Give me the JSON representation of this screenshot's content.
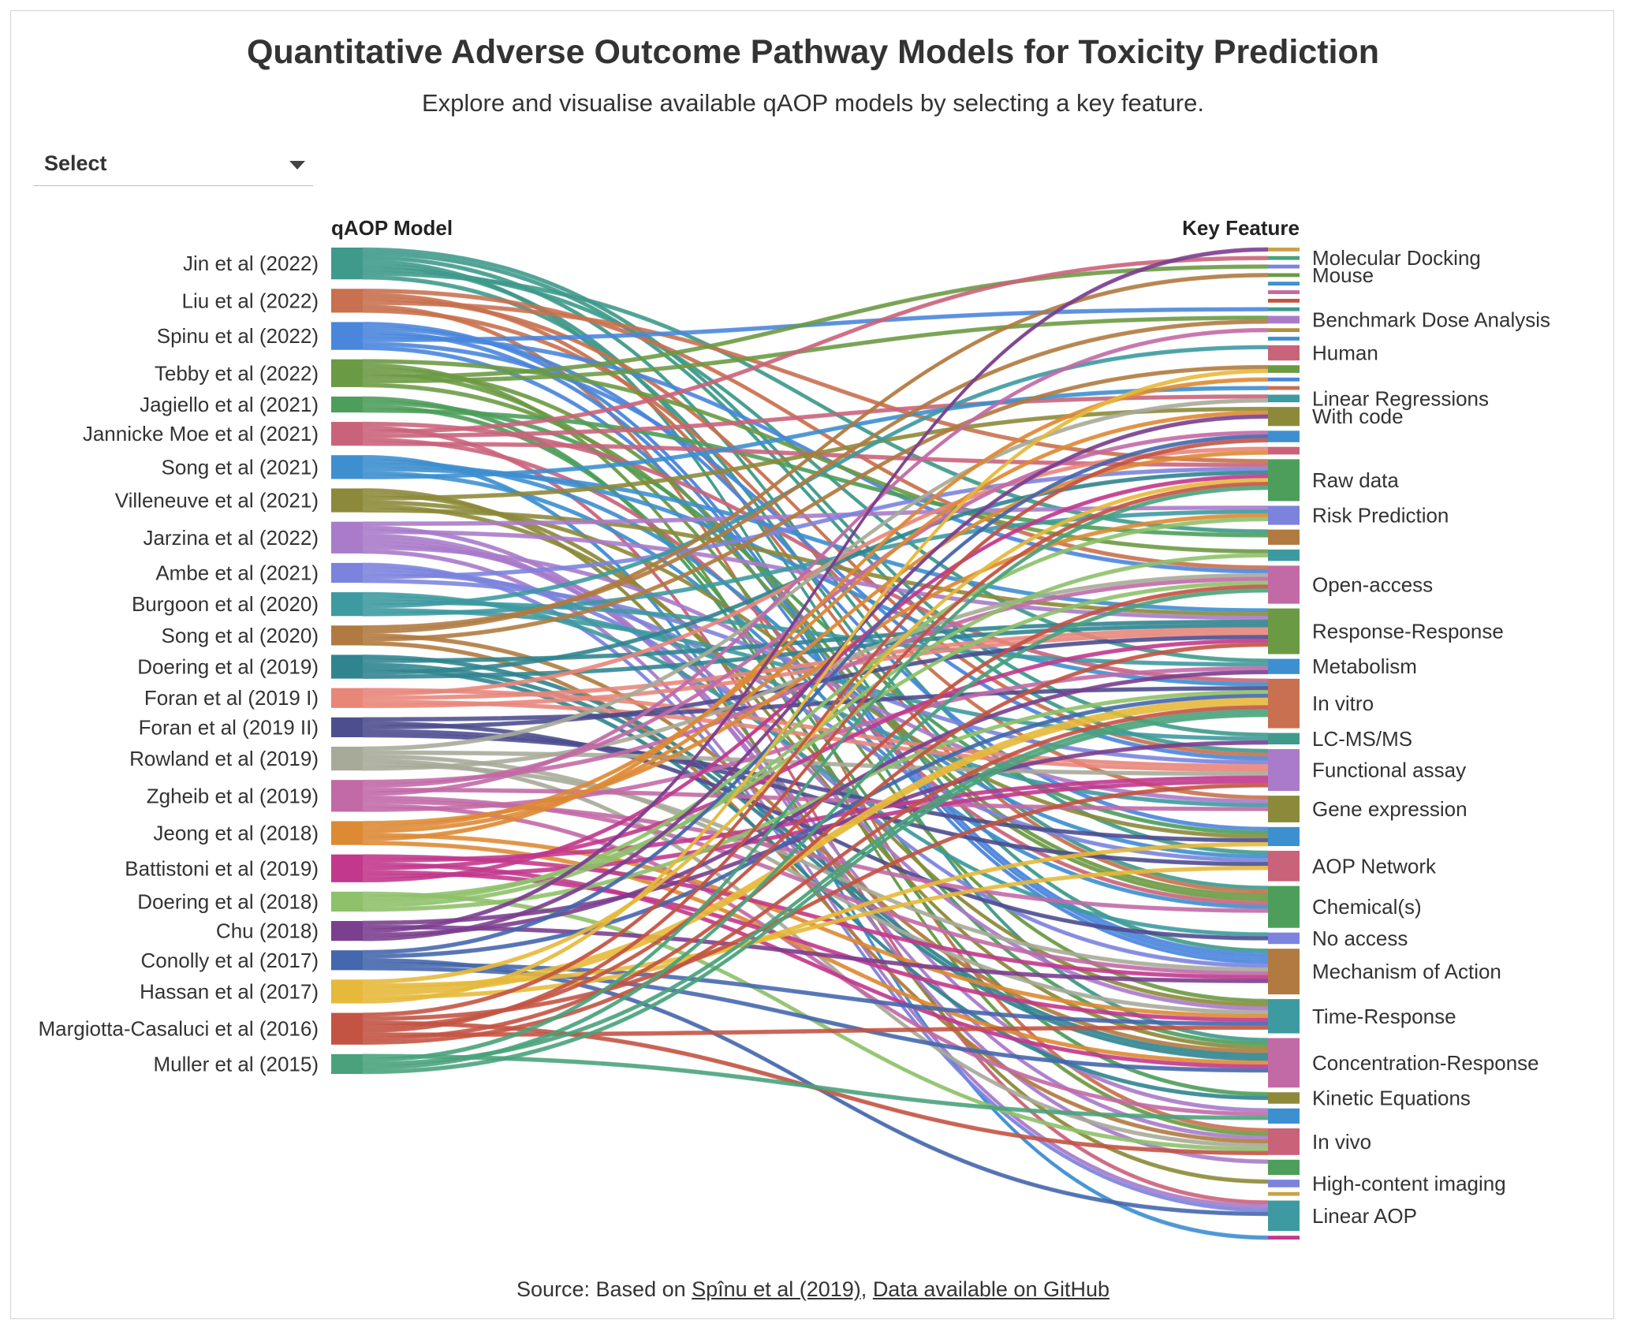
{
  "header": {
    "title": "Quantitative Adverse Outcome Pathway Models for Toxicity Prediction",
    "subtitle": "Explore and visualise available qAOP models by selecting a key feature."
  },
  "select": {
    "label": "Select",
    "icon": "caret-down-icon"
  },
  "chart_data": {
    "type": "sankey",
    "left_header": "qAOP Model",
    "right_header": "Key Feature",
    "models": [
      {
        "label": "Jin et al (2022)",
        "color": "#3f9a8b",
        "weight": 8
      },
      {
        "label": "Liu et al (2022)",
        "color": "#c8704f",
        "weight": 6
      },
      {
        "label": "Spinu et al (2022)",
        "color": "#4a86dc",
        "weight": 7
      },
      {
        "label": "Tebby et al (2022)",
        "color": "#6b9a44",
        "weight": 7
      },
      {
        "label": "Jagiello et al (2021)",
        "color": "#4c9e5a",
        "weight": 4
      },
      {
        "label": "Jannicke Moe et al (2021)",
        "color": "#c9637a",
        "weight": 6
      },
      {
        "label": "Song et al (2021)",
        "color": "#3d8fd0",
        "weight": 6
      },
      {
        "label": "Villeneuve et al (2021)",
        "color": "#8c8a3a",
        "weight": 6
      },
      {
        "label": "Jarzina et al (2022)",
        "color": "#a97bc9",
        "weight": 8
      },
      {
        "label": "Ambe et al (2021)",
        "color": "#7c83dd",
        "weight": 5
      },
      {
        "label": "Burgoon et al (2020)",
        "color": "#3d9aa0",
        "weight": 6
      },
      {
        "label": "Song et al (2020)",
        "color": "#b07a40",
        "weight": 5
      },
      {
        "label": "Doering et al (2019)",
        "color": "#2f8490",
        "weight": 6
      },
      {
        "label": "Foran et al (2019 I)",
        "color": "#e8867a",
        "weight": 5
      },
      {
        "label": "Foran et al (2019 II)",
        "color": "#4c4e8e",
        "weight": 5
      },
      {
        "label": "Rowland et al (2019)",
        "color": "#a7aa98",
        "weight": 6
      },
      {
        "label": "Zgheib et al (2019)",
        "color": "#c26aa6",
        "weight": 8
      },
      {
        "label": "Jeong et al (2018)",
        "color": "#dd8a34",
        "weight": 6
      },
      {
        "label": "Battistoni et al (2019)",
        "color": "#c2388c",
        "weight": 7
      },
      {
        "label": "Doering et al (2018)",
        "color": "#8fc06a",
        "weight": 5
      },
      {
        "label": "Chu (2018)",
        "color": "#7a3f8e",
        "weight": 5
      },
      {
        "label": "Conolly et al (2017)",
        "color": "#4567ad",
        "weight": 5
      },
      {
        "label": "Hassan et al (2017)",
        "color": "#e6b93b",
        "weight": 6
      },
      {
        "label": "Margiotta-Casaluci et al (2016)",
        "color": "#c35443",
        "weight": 8
      },
      {
        "label": "Muller et al (2015)",
        "color": "#4aa27c",
        "weight": 5
      }
    ],
    "features": [
      {
        "label": "",
        "color": "#c9a24a",
        "weight": 1
      },
      {
        "label": "Molecular Docking",
        "color": "#4aa27c",
        "weight": 1
      },
      {
        "label": "",
        "color": "#7c83dd",
        "weight": 1
      },
      {
        "label": "Mouse",
        "color": "#6b9a44",
        "weight": 1
      },
      {
        "label": "",
        "color": "#3d8fd0",
        "weight": 1
      },
      {
        "label": "",
        "color": "#c26aa6",
        "weight": 1
      },
      {
        "label": "",
        "color": "#c35443",
        "weight": 1
      },
      {
        "label": "",
        "color": "#3f9a8b",
        "weight": 1
      },
      {
        "label": "Benchmark Dose Analysis",
        "color": "#a97bc9",
        "weight": 2
      },
      {
        "label": "",
        "color": "#b0903a",
        "weight": 1
      },
      {
        "label": "",
        "color": "#3d8fd0",
        "weight": 1
      },
      {
        "label": "Human",
        "color": "#c9637a",
        "weight": 4
      },
      {
        "label": "",
        "color": "#6b9a44",
        "weight": 2
      },
      {
        "label": "",
        "color": "#4a86dc",
        "weight": 1
      },
      {
        "label": "",
        "color": "#c8704f",
        "weight": 1
      },
      {
        "label": "Linear Regressions",
        "color": "#3d9aa0",
        "weight": 2
      },
      {
        "label": "With code",
        "color": "#8c8a3a",
        "weight": 5
      },
      {
        "label": "",
        "color": "#3d8fd0",
        "weight": 3
      },
      {
        "label": "",
        "color": "#c9637a",
        "weight": 2
      },
      {
        "label": "Raw data",
        "color": "#4c9e5a",
        "weight": 11
      },
      {
        "label": "Risk Prediction",
        "color": "#7c83dd",
        "weight": 5
      },
      {
        "label": "",
        "color": "#b07a40",
        "weight": 4
      },
      {
        "label": "",
        "color": "#3d9aa0",
        "weight": 3
      },
      {
        "label": "Open-access",
        "color": "#c26aa6",
        "weight": 10
      },
      {
        "label": "Response-Response",
        "color": "#6b9a44",
        "weight": 12
      },
      {
        "label": "Metabolism",
        "color": "#3d8fd0",
        "weight": 4
      },
      {
        "label": "In vitro",
        "color": "#c8704f",
        "weight": 13
      },
      {
        "label": "LC-MS/MS",
        "color": "#3f9a8b",
        "weight": 3
      },
      {
        "label": "Functional assay",
        "color": "#a97bc9",
        "weight": 11
      },
      {
        "label": "Gene expression",
        "color": "#8c8a3a",
        "weight": 7
      },
      {
        "label": "",
        "color": "#3d8fd0",
        "weight": 5
      },
      {
        "label": "AOP Network",
        "color": "#c9637a",
        "weight": 8
      },
      {
        "label": "Chemical(s)",
        "color": "#4c9e5a",
        "weight": 11
      },
      {
        "label": "No access",
        "color": "#7c83dd",
        "weight": 3
      },
      {
        "label": "Mechanism of Action",
        "color": "#b07a40",
        "weight": 12
      },
      {
        "label": "Time-Response",
        "color": "#3d9aa0",
        "weight": 9
      },
      {
        "label": "Concentration-Response",
        "color": "#c26aa6",
        "weight": 13
      },
      {
        "label": "Kinetic Equations",
        "color": "#8c8a3a",
        "weight": 3
      },
      {
        "label": "",
        "color": "#3d8fd0",
        "weight": 4
      },
      {
        "label": "In vivo",
        "color": "#c9637a",
        "weight": 7
      },
      {
        "label": "",
        "color": "#4c9e5a",
        "weight": 4
      },
      {
        "label": "High-content imaging",
        "color": "#7c83dd",
        "weight": 2
      },
      {
        "label": "",
        "color": "#c9a24a",
        "weight": 1
      },
      {
        "label": "Linear AOP",
        "color": "#3d9aa0",
        "weight": 8
      },
      {
        "label": "",
        "color": "#c2388c",
        "weight": 1
      }
    ]
  },
  "source": {
    "prefix": "Source: Based on ",
    "link1": "Spînu et al (2019)",
    "separator": ", ",
    "link2": "Data available on GitHub"
  }
}
